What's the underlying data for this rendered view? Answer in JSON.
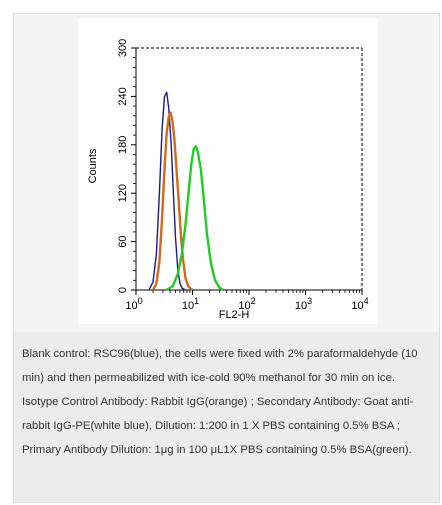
{
  "chart_data": {
    "type": "line",
    "title": "",
    "xlabel": "FL2-H",
    "ylabel": "Counts",
    "xscale": "log",
    "xlim": [
      1,
      10000
    ],
    "ylim": [
      0,
      300
    ],
    "x_ticks": [
      {
        "value": 1,
        "base": "10",
        "exp": "0"
      },
      {
        "value": 10,
        "base": "10",
        "exp": "1"
      },
      {
        "value": 100,
        "base": "10",
        "exp": "2"
      },
      {
        "value": 1000,
        "base": "10",
        "exp": "3"
      },
      {
        "value": 10000,
        "base": "10",
        "exp": "4"
      }
    ],
    "y_ticks": [
      "0",
      "60",
      "120",
      "180",
      "240",
      "300"
    ],
    "y_tick_values": [
      0,
      60,
      120,
      180,
      240,
      300
    ],
    "grid": false,
    "series": [
      {
        "color": "#1a1a8c",
        "x": [
          1.7,
          2.0,
          2.3,
          2.6,
          2.9,
          3.2,
          3.5,
          3.8,
          4.2,
          4.6,
          5.0,
          5.5,
          6.0,
          6.6,
          7.5
        ],
        "y": [
          0,
          10,
          45,
          120,
          200,
          240,
          245,
          225,
          180,
          120,
          65,
          25,
          8,
          2,
          0
        ]
      },
      {
        "color": "#d2691e",
        "x": [
          2.0,
          2.3,
          2.6,
          2.9,
          3.2,
          3.5,
          3.8,
          4.1,
          4.4,
          4.8,
          5.2,
          5.7,
          6.2,
          6.8,
          7.5,
          8.5,
          10.0
        ],
        "y": [
          0,
          8,
          35,
          90,
          150,
          195,
          215,
          220,
          210,
          185,
          150,
          110,
          70,
          38,
          15,
          4,
          0
        ]
      },
      {
        "color": "#22cc22",
        "x": [
          3.5,
          4.5,
          5.5,
          6.5,
          7.5,
          8.5,
          9.5,
          10.5,
          11.5,
          12.5,
          14,
          16,
          18,
          21,
          25,
          30,
          35
        ],
        "y": [
          0,
          5,
          20,
          45,
          80,
          120,
          155,
          175,
          178,
          170,
          150,
          110,
          70,
          35,
          12,
          3,
          0
        ]
      }
    ]
  },
  "caption": [
    "Blank control: RSC96(blue), the cells were fixed with 2% paraformaldehyde (10 min) and then permeabilized with ice-cold 90% methanol for 30 min on ice.",
    "Isotype Control Antibody: Rabbit IgG(orange) ; Secondary Antibody: Goat anti-rabbit IgG-PE(white blue), Dilution: 1:200 in 1 X PBS containing 0.5% BSA ; Primary Antibody Dilution: 1μg in 100 μL1X PBS containing 0.5% BSA(green)."
  ]
}
